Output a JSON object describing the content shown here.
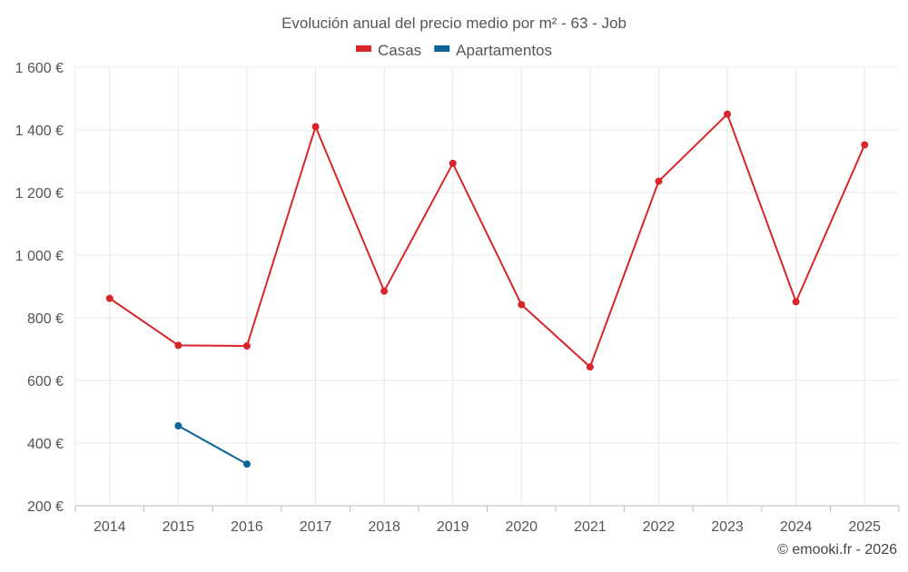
{
  "chart_data": {
    "type": "line",
    "title": "Evolución anual del precio medio por m² - 63 - Job",
    "categories": [
      "2014",
      "2015",
      "2016",
      "2017",
      "2018",
      "2019",
      "2020",
      "2021",
      "2022",
      "2023",
      "2024",
      "2025"
    ],
    "series": [
      {
        "name": "Casas",
        "color": "#d7262b",
        "values": [
          862,
          712,
          710,
          1410,
          885,
          1293,
          842,
          643,
          1236,
          1450,
          851,
          1352
        ]
      },
      {
        "name": "Apartamentos",
        "color": "#0a6497",
        "values": [
          null,
          455,
          333,
          null,
          null,
          null,
          null,
          null,
          null,
          null,
          null,
          null
        ]
      }
    ],
    "y_ticks": [
      "200 €",
      "400 €",
      "600 €",
      "800 €",
      "1 000 €",
      "1 200 €",
      "1 400 €",
      "1 600 €"
    ],
    "y_tick_values": [
      200,
      400,
      600,
      800,
      1000,
      1200,
      1400,
      1600
    ],
    "ylim": [
      200,
      1600
    ],
    "grid": true,
    "legend_position": "top-center"
  },
  "credit": "© emooki.fr - 2026"
}
